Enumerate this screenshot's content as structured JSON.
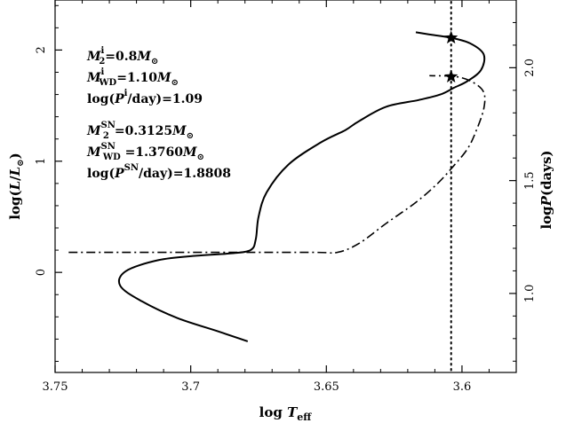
{
  "chart_data": {
    "type": "line",
    "xlabel_main": "log",
    "xlabel_italic": "T",
    "xlabel_sub": "eff",
    "ylabel_left_main": "log(",
    "ylabel_left_italic": "L",
    "ylabel_left_slash": "/",
    "ylabel_left_italic2": "L",
    "ylabel_left_sun": "⊙",
    "ylabel_left_close": ")",
    "ylabel_right_main": "log",
    "ylabel_right_italic": "P",
    "ylabel_right_units": "(days)",
    "xlim": [
      3.75,
      3.58
    ],
    "ylim_left": [
      -0.9,
      2.45
    ],
    "ylim_right": [
      0.65,
      2.3
    ],
    "x_ticks": [
      "3.75",
      "3.7",
      "3.65",
      "3.6"
    ],
    "x_tick_values": [
      3.75,
      3.7,
      3.65,
      3.6
    ],
    "y_left_ticks": [
      "0",
      "1",
      "2"
    ],
    "y_left_tick_values": [
      0,
      1,
      2
    ],
    "y_right_ticks": [
      "1.0",
      "1.5",
      "2.0"
    ],
    "y_right_tick_values": [
      1.0,
      1.5,
      2.0
    ],
    "vertical_line_x": 3.604,
    "series": [
      {
        "axis": "left",
        "style": "solid",
        "x": [
          3.679,
          3.69,
          3.705,
          3.718,
          3.726,
          3.724,
          3.712,
          3.698,
          3.686,
          3.678,
          3.676,
          3.675,
          3.672,
          3.664,
          3.652,
          3.643,
          3.638,
          3.628,
          3.616,
          3.608,
          3.603,
          3.598,
          3.593,
          3.592,
          3.597,
          3.604,
          3.612,
          3.617
        ],
        "y": [
          -0.62,
          -0.53,
          -0.41,
          -0.26,
          -0.12,
          0.01,
          0.11,
          0.15,
          0.17,
          0.2,
          0.3,
          0.5,
          0.72,
          0.97,
          1.17,
          1.28,
          1.36,
          1.49,
          1.55,
          1.6,
          1.66,
          1.72,
          1.82,
          1.96,
          2.06,
          2.11,
          2.14,
          2.16
        ]
      },
      {
        "axis": "left",
        "style": "dashdot",
        "x": [
          3.745,
          3.7,
          3.655,
          3.646,
          3.638,
          3.628,
          3.617,
          3.609,
          3.603,
          3.598,
          3.595,
          3.592,
          3.592,
          3.596,
          3.602,
          3.612
        ],
        "y": [
          0.18,
          0.18,
          0.18,
          0.18,
          0.26,
          0.44,
          0.63,
          0.8,
          0.96,
          1.11,
          1.26,
          1.47,
          1.62,
          1.71,
          1.76,
          1.77
        ]
      }
    ],
    "markers": [
      {
        "shape": "star",
        "x": 3.604,
        "y": 2.11
      },
      {
        "shape": "star",
        "x": 3.604,
        "y": 1.76
      }
    ],
    "annotations": [
      {
        "main": "M",
        "sub": "2",
        "sup": "i",
        "rest": "=0.8",
        "unit_m": "M",
        "unit_sun": "⊙"
      },
      {
        "main": "M",
        "sub": "WD",
        "sup": "i",
        "rest": "=1.10",
        "unit_m": "M",
        "unit_sun": "⊙"
      },
      {
        "text_a": "log(",
        "italic": "P",
        "sup": "i",
        "text_b": "/day)=1.09"
      },
      {
        "main": "M",
        "sub": "2",
        "sup": "SN",
        "rest": "=0.3125",
        "unit_m": "M",
        "unit_sun": "⊙"
      },
      {
        "main": "M",
        "sub": "WD",
        "sup": "SN",
        "rest": " =1.3760",
        "unit_m": "M",
        "unit_sun": "⊙"
      },
      {
        "text_a": "log(",
        "italic": "P",
        "sup": "SN",
        "text_b": "/day)=1.8808"
      }
    ]
  }
}
